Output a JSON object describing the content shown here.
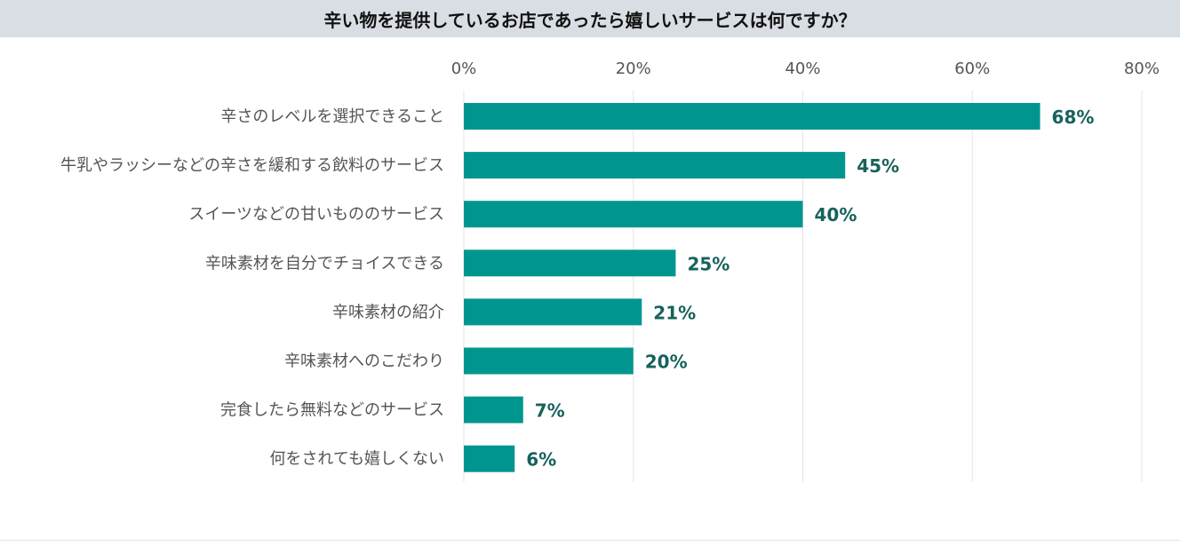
{
  "chart_data": {
    "type": "bar",
    "orientation": "horizontal",
    "title": "辛い物を提供しているお店であったら嬉しいサービスは何ですか？",
    "categories": [
      "辛さのレベルを選択できること",
      "牛乳やラッシーなどの辛さを緩和する飲料のサービス",
      "スイーツなどの甘いもののサービス",
      "辛味素材を自分でチョイスできる",
      "辛味素材の紹介",
      "辛味素材へのこだわり",
      "完食したら無料などのサービス",
      "何をされても嬉しくない"
    ],
    "values": [
      68,
      45,
      40,
      25,
      21,
      20,
      7,
      6
    ],
    "value_labels": [
      "68%",
      "45%",
      "40%",
      "25%",
      "21%",
      "20%",
      "7%",
      "6%"
    ],
    "xlim": [
      0,
      80
    ],
    "ticks": [
      0,
      20,
      40,
      60,
      80
    ],
    "tick_labels": [
      "0%",
      "20%",
      "40%",
      "60%",
      "80%"
    ],
    "grid": true,
    "bar_color": "#00968f",
    "label_color": "#17625c"
  }
}
